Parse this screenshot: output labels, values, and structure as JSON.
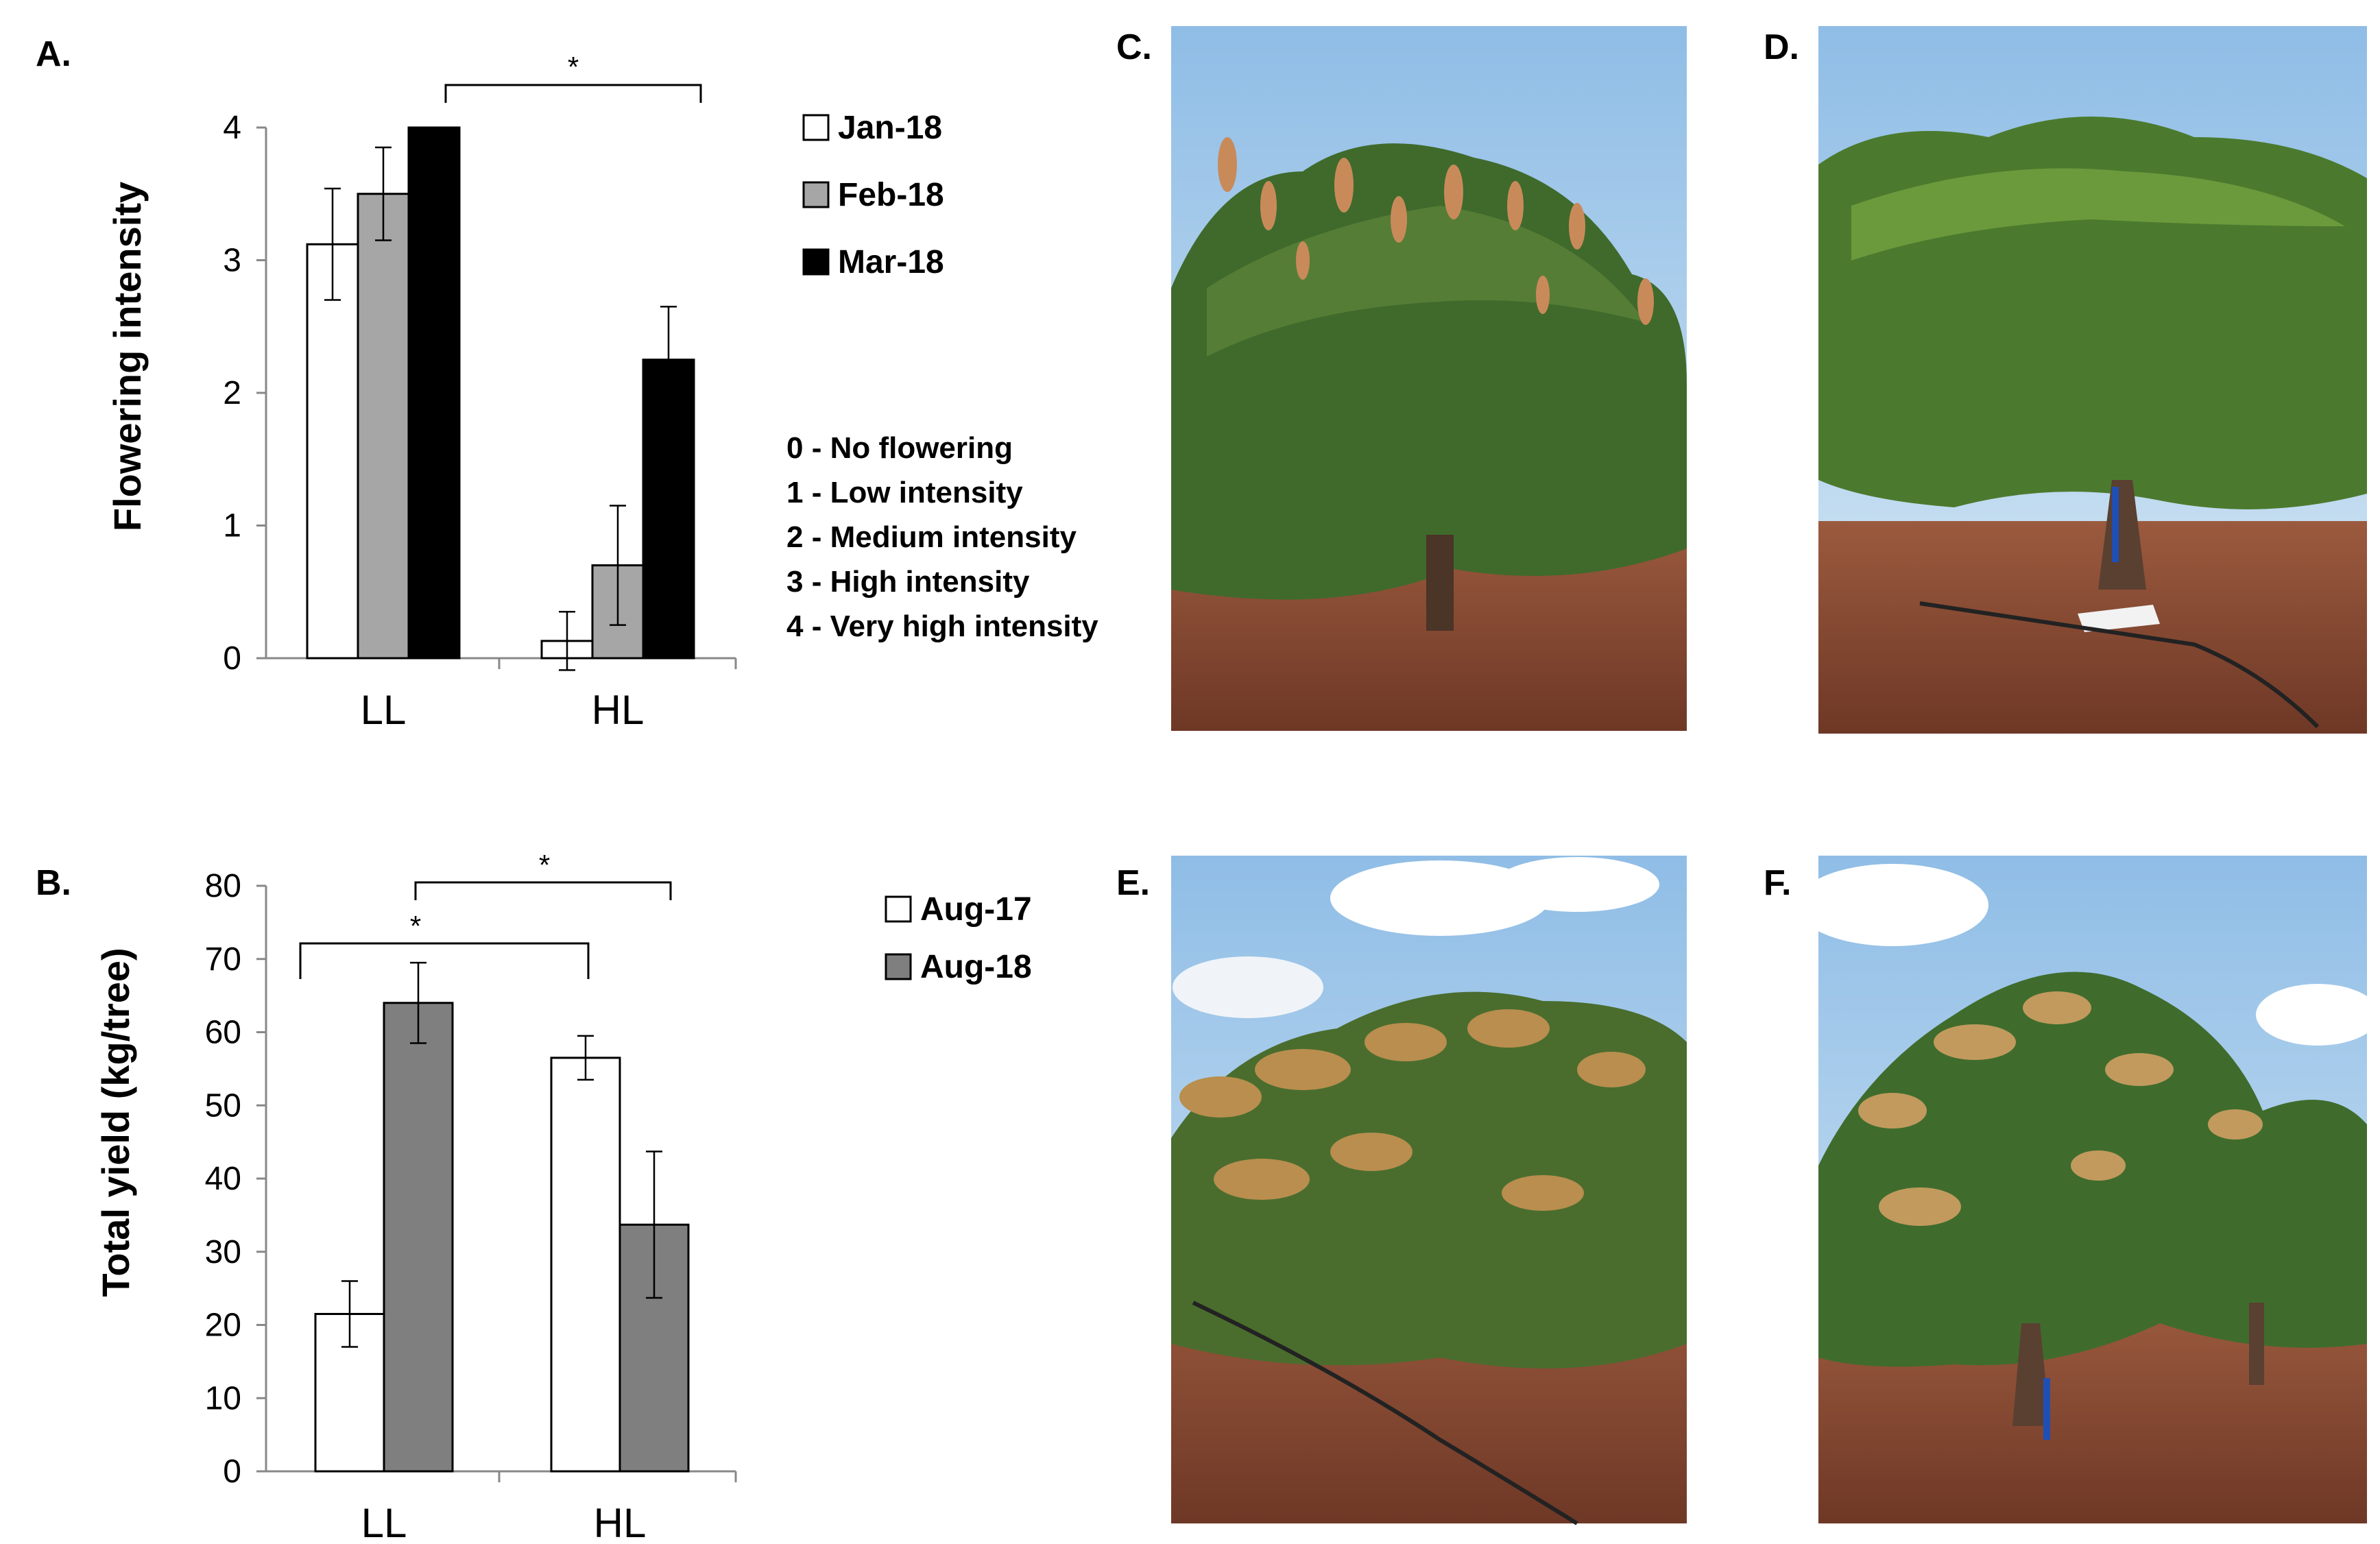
{
  "panel_labels": {
    "a": "A.",
    "b": "B.",
    "c": "C.",
    "d": "D.",
    "e": "E.",
    "f": "F."
  },
  "colors": {
    "white_bar": "#ffffff",
    "light_gray_bar": "#a6a6a6",
    "black_bar": "#000000",
    "dark_gray_bar": "#7f7f7f",
    "sky": "#a9cbe8",
    "foliage": "#3f6a2c",
    "soil": "#8b4a33"
  },
  "chart_data": [
    {
      "type": "bar",
      "panel": "A.",
      "ylabel": "Flowering intensity",
      "ylim": [
        0,
        4
      ],
      "yticks": [
        "0",
        "1",
        "2",
        "3",
        "4"
      ],
      "categories": [
        "LL",
        "HL"
      ],
      "series": [
        {
          "name": "Jan-18",
          "color": "#ffffff",
          "values": [
            3.12,
            0.13
          ],
          "errors": [
            0.42,
            0.22
          ]
        },
        {
          "name": "Feb-18",
          "color": "#a6a6a6",
          "values": [
            3.5,
            0.7
          ],
          "errors": [
            0.35,
            0.45
          ]
        },
        {
          "name": "Mar-18",
          "color": "#000000",
          "values": [
            4.0,
            2.25
          ],
          "errors": [
            0,
            0.4
          ]
        }
      ],
      "significance": [
        "*"
      ],
      "scale_legend": [
        "0 - No flowering",
        "1 - Low intensity",
        "2 - Medium intensity",
        "3 - High intensity",
        "4 - Very high intensity"
      ],
      "legend_position": "right"
    },
    {
      "type": "bar",
      "panel": "B.",
      "ylabel": "Total yield (kg/tree)",
      "ylim": [
        0,
        80
      ],
      "yticks": [
        "0",
        "10",
        "20",
        "30",
        "40",
        "50",
        "60",
        "70",
        "80"
      ],
      "categories": [
        "LL",
        "HL"
      ],
      "series": [
        {
          "name": "Aug-17",
          "color": "#ffffff",
          "values": [
            21.5,
            56.5
          ],
          "errors": [
            4.5,
            3
          ]
        },
        {
          "name": "Aug-18",
          "color": "#7f7f7f",
          "values": [
            64,
            33.7
          ],
          "errors": [
            5.5,
            10
          ]
        }
      ],
      "significance": [
        "*",
        "*"
      ],
      "legend_position": "right"
    }
  ],
  "photos": [
    {
      "label": "C.",
      "icon": "flowering-mango-tree-photo"
    },
    {
      "label": "D.",
      "icon": "non-flowering-mango-tree-photo"
    },
    {
      "label": "E.",
      "icon": "flowering-mango-tree-photo"
    },
    {
      "label": "F.",
      "icon": "flowering-mango-tree-photo"
    }
  ]
}
